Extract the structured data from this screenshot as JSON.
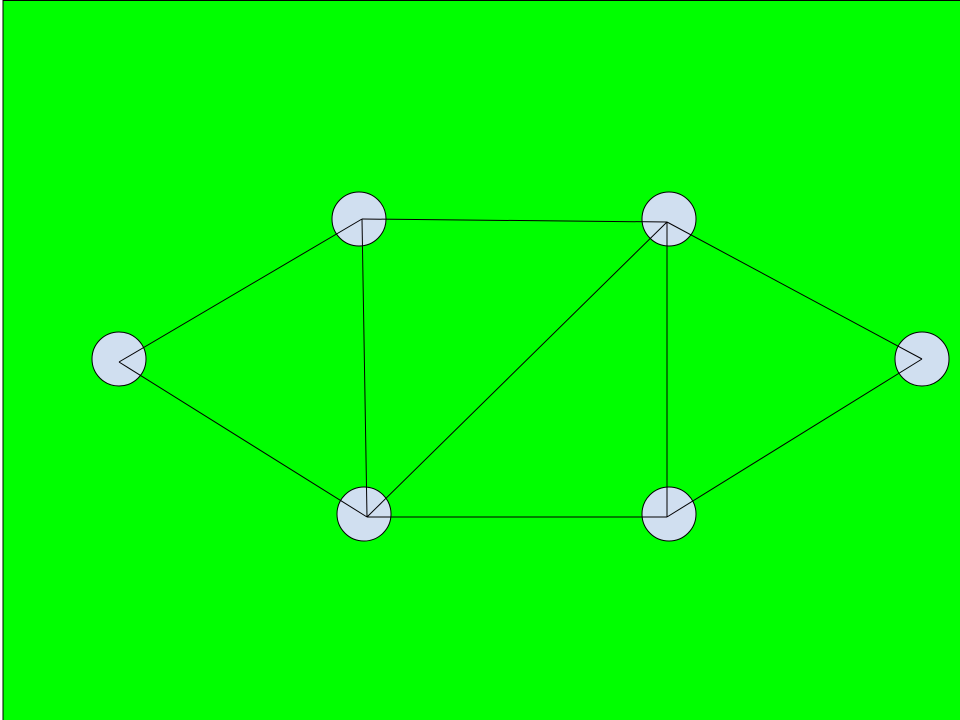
{
  "diagram": {
    "type": "undirected-graph",
    "colors": {
      "background": "#00ff00",
      "node_fill": "#d0dff0",
      "node_stroke": "#000000",
      "edge_stroke": "#000000"
    },
    "nodes": [
      {
        "id": "n1"
      },
      {
        "id": "n2"
      },
      {
        "id": "n3"
      },
      {
        "id": "n4"
      },
      {
        "id": "n5"
      },
      {
        "id": "n6"
      }
    ],
    "edges": [
      {
        "from": "n1",
        "to": "n2"
      },
      {
        "from": "n1",
        "to": "n4"
      },
      {
        "from": "n2",
        "to": "n3"
      },
      {
        "from": "n2",
        "to": "n4"
      },
      {
        "from": "n3",
        "to": "n4"
      },
      {
        "from": "n3",
        "to": "n5"
      },
      {
        "from": "n3",
        "to": "n6"
      },
      {
        "from": "n4",
        "to": "n5"
      },
      {
        "from": "n5",
        "to": "n6"
      }
    ]
  }
}
